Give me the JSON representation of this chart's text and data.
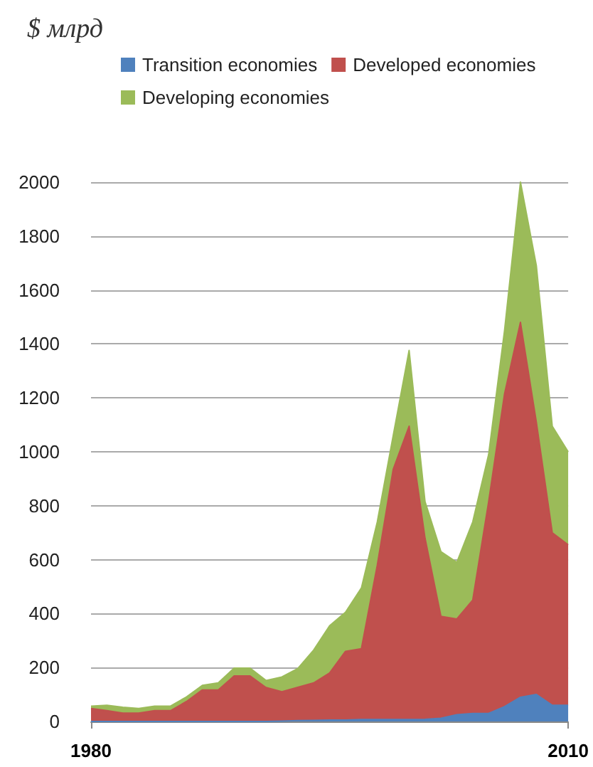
{
  "chart_data": {
    "type": "area",
    "title": "$ млрд",
    "stacked": true,
    "legend": "top left",
    "grid": "y",
    "marker": "none",
    "x": [
      1980,
      1981,
      1982,
      1983,
      1984,
      1985,
      1986,
      1987,
      1988,
      1989,
      1990,
      1991,
      1992,
      1993,
      1994,
      1995,
      1996,
      1997,
      1998,
      1999,
      2000,
      2001,
      2002,
      2003,
      2004,
      2005,
      2006,
      2007,
      2008,
      2009,
      2010
    ],
    "xlim": [
      1980,
      2010
    ],
    "xticks": [
      1980,
      2010
    ],
    "ylim": [
      0,
      2000
    ],
    "yticks": [
      0,
      200,
      400,
      600,
      800,
      1000,
      1200,
      1400,
      1600,
      1800,
      2000
    ],
    "series": [
      {
        "name": "Transition economies",
        "color": "#4f81bd",
        "values": [
          0,
          0,
          0,
          0,
          0,
          0,
          0,
          0,
          0,
          0,
          0,
          0,
          1,
          3,
          4,
          5,
          5,
          7,
          7,
          7,
          7,
          8,
          12,
          25,
          30,
          30,
          55,
          90,
          100,
          60,
          60
        ]
      },
      {
        "name": "Developed economies",
        "color": "#c0504d",
        "values": [
          48,
          40,
          31,
          31,
          40,
          40,
          74,
          117,
          117,
          169,
          169,
          126,
          109,
          124,
          139,
          175,
          255,
          263,
          573,
          928,
          1088,
          672,
          378,
          355,
          420,
          785,
          1160,
          1390,
          1010,
          640,
          595
        ]
      },
      {
        "name": "Developing economies",
        "color": "#9bbb59",
        "values": [
          9,
          20,
          22,
          17,
          17,
          17,
          17,
          17,
          26,
          29,
          29,
          26,
          55,
          69,
          122,
          175,
          145,
          225,
          160,
          125,
          281,
          135,
          240,
          210,
          290,
          175,
          235,
          520,
          580,
          395,
          345
        ]
      }
    ]
  }
}
